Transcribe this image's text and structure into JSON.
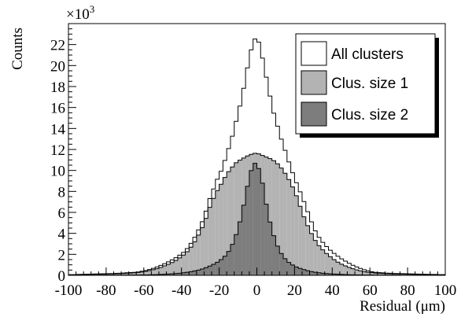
{
  "chart_data": {
    "type": "histogram",
    "title": "",
    "xlabel": "Residual (μm)",
    "ylabel": "Counts",
    "y_multiplier_label": "×10",
    "y_multiplier_exponent": "3",
    "xlim": [
      -100,
      100
    ],
    "ylim": [
      0,
      24
    ],
    "x_tick_labels": [
      "-100",
      "-80",
      "-60",
      "-40",
      "-20",
      "0",
      "20",
      "40",
      "60",
      "80",
      "100"
    ],
    "y_tick_labels": [
      "0",
      "2",
      "4",
      "6",
      "8",
      "10",
      "12",
      "14",
      "16",
      "18",
      "20",
      "22"
    ],
    "bin_width": 2,
    "bin_centers": [
      -99,
      -97,
      -95,
      -93,
      -91,
      -89,
      -87,
      -85,
      -83,
      -81,
      -79,
      -77,
      -75,
      -73,
      -71,
      -69,
      -67,
      -65,
      -63,
      -61,
      -59,
      -57,
      -55,
      -53,
      -51,
      -49,
      -47,
      -45,
      -43,
      -41,
      -39,
      -37,
      -35,
      -33,
      -31,
      -29,
      -27,
      -25,
      -23,
      -21,
      -19,
      -17,
      -15,
      -13,
      -11,
      -9,
      -7,
      -5,
      -3,
      -1,
      1,
      3,
      5,
      7,
      9,
      11,
      13,
      15,
      17,
      19,
      21,
      23,
      25,
      27,
      29,
      31,
      33,
      35,
      37,
      39,
      41,
      43,
      45,
      47,
      49,
      51,
      53,
      55,
      57,
      59,
      61,
      63,
      65,
      67,
      69,
      71,
      73,
      75,
      77,
      79,
      81,
      83,
      85,
      87,
      89,
      91,
      93,
      95,
      97,
      99
    ],
    "legend_position": "top-right",
    "series": [
      {
        "name": "All clusters",
        "color": "#ffffff",
        "values": [
          0.07,
          0.07,
          0.08,
          0.09,
          0.1,
          0.11,
          0.12,
          0.13,
          0.14,
          0.15,
          0.16,
          0.17,
          0.19,
          0.2,
          0.22,
          0.24,
          0.26,
          0.28,
          0.32,
          0.38,
          0.45,
          0.55,
          0.67,
          0.8,
          0.95,
          1.11,
          1.28,
          1.47,
          1.68,
          1.92,
          2.18,
          2.55,
          3.05,
          3.63,
          4.33,
          5.11,
          6.12,
          7.31,
          8.23,
          9.16,
          9.92,
          10.95,
          12.08,
          13.27,
          14.68,
          16.13,
          17.83,
          19.78,
          21.5,
          22.53,
          22.23,
          20.71,
          18.89,
          17.09,
          15.46,
          14.22,
          12.98,
          11.92,
          10.81,
          9.78,
          8.83,
          7.96,
          7.03,
          6.07,
          5.1,
          4.24,
          3.62,
          3.14,
          2.74,
          2.39,
          2.09,
          1.82,
          1.57,
          1.35,
          1.14,
          0.96,
          0.8,
          0.66,
          0.53,
          0.43,
          0.34,
          0.28,
          0.25,
          0.23,
          0.21,
          0.2,
          0.18,
          0.17,
          0.16,
          0.15,
          0.14,
          0.13,
          0.12,
          0.11,
          0.1,
          0.09,
          0.08,
          0.08,
          0.07,
          0.07
        ]
      },
      {
        "name": "Clus. size 1",
        "color": "#b3b3b3",
        "values": [
          0.05,
          0.05,
          0.06,
          0.06,
          0.07,
          0.08,
          0.09,
          0.1,
          0.11,
          0.12,
          0.13,
          0.14,
          0.15,
          0.16,
          0.18,
          0.2,
          0.22,
          0.24,
          0.27,
          0.32,
          0.38,
          0.45,
          0.53,
          0.63,
          0.75,
          0.9,
          1.05,
          1.22,
          1.42,
          1.66,
          1.93,
          2.25,
          2.68,
          3.2,
          3.83,
          4.55,
          5.43,
          6.48,
          7.33,
          8.08,
          8.68,
          9.33,
          9.88,
          10.33,
          10.73,
          10.98,
          11.18,
          11.38,
          11.53,
          11.63,
          11.58,
          11.43,
          11.28,
          11.13,
          10.93,
          10.63,
          10.23,
          9.73,
          9.13,
          8.43,
          7.58,
          6.58,
          5.58,
          4.73,
          3.98,
          3.33,
          2.83,
          2.43,
          2.08,
          1.78,
          1.5,
          1.26,
          1.06,
          0.9,
          0.76,
          0.63,
          0.52,
          0.43,
          0.35,
          0.29,
          0.25,
          0.22,
          0.2,
          0.18,
          0.16,
          0.15,
          0.14,
          0.13,
          0.12,
          0.11,
          0.1,
          0.09,
          0.08,
          0.07,
          0.07,
          0.06,
          0.06,
          0.05,
          0.05,
          0.05
        ]
      },
      {
        "name": "Clus. size 2",
        "color": "#7d7d7d",
        "values": [
          0.01,
          0.01,
          0.01,
          0.01,
          0.01,
          0.01,
          0.01,
          0.01,
          0.02,
          0.02,
          0.02,
          0.02,
          0.02,
          0.02,
          0.02,
          0.03,
          0.03,
          0.03,
          0.03,
          0.04,
          0.04,
          0.05,
          0.06,
          0.07,
          0.08,
          0.1,
          0.12,
          0.14,
          0.17,
          0.2,
          0.24,
          0.29,
          0.35,
          0.42,
          0.5,
          0.6,
          0.73,
          0.88,
          1.05,
          1.25,
          1.5,
          1.82,
          2.28,
          2.95,
          3.88,
          5.1,
          6.68,
          8.48,
          9.98,
          10.68,
          10.18,
          8.78,
          6.78,
          5.08,
          3.78,
          2.78,
          2.08,
          1.58,
          1.23,
          0.98,
          0.8,
          0.66,
          0.54,
          0.44,
          0.36,
          0.29,
          0.24,
          0.2,
          0.17,
          0.14,
          0.12,
          0.1,
          0.08,
          0.07,
          0.06,
          0.05,
          0.04,
          0.04,
          0.03,
          0.03,
          0.03,
          0.02,
          0.02,
          0.02,
          0.02,
          0.02,
          0.02,
          0.02,
          0.01,
          0.01,
          0.01,
          0.01,
          0.01,
          0.01,
          0.01,
          0.01,
          0.01,
          0.01,
          0.01,
          0.01
        ]
      }
    ]
  }
}
